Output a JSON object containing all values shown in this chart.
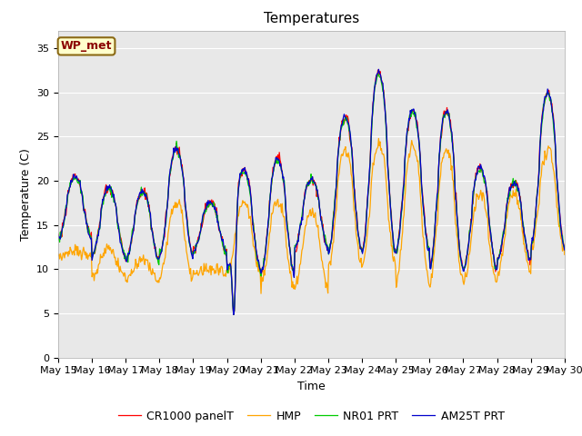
{
  "title": "Temperatures",
  "xlabel": "Time",
  "ylabel": "Temperature (C)",
  "ylim": [
    0,
    37
  ],
  "yticks": [
    0,
    5,
    10,
    15,
    20,
    25,
    30,
    35
  ],
  "plot_bg_color": "#e8e8e8",
  "fig_bg_color": "#ffffff",
  "annotation_text": "WP_met",
  "annotation_facecolor": "#ffffcc",
  "annotation_edgecolor": "#8b6914",
  "annotation_textcolor": "#8b0000",
  "colors": {
    "CR1000 panelT": "#ff0000",
    "HMP": "#ffa500",
    "NR01 PRT": "#00cc00",
    "AM25T PRT": "#0000cc"
  },
  "linewidth": 0.9,
  "x_tick_labels": [
    "May 15",
    "May 16",
    "May 17",
    "May 18",
    "May 19",
    "May 20",
    "May 21",
    "May 22",
    "May 23",
    "May 24",
    "May 25",
    "May 26",
    "May 27",
    "May 28",
    "May 29",
    "May 30"
  ],
  "n_days": 15,
  "pts_per_day": 48,
  "day_peaks_cr": [
    20.5,
    19.2,
    18.8,
    23.6,
    17.5,
    21.2,
    22.5,
    20.2,
    27.2,
    32.3,
    28.0,
    28.0,
    21.5,
    19.8,
    30.0
  ],
  "day_mins_cr": [
    13.5,
    11.5,
    11.0,
    11.5,
    12.0,
    10.0,
    9.5,
    12.5,
    12.0,
    12.0,
    12.0,
    10.0,
    10.0,
    11.0,
    12.5
  ],
  "day_peaks_hmp": [
    12.0,
    12.2,
    11.0,
    17.5,
    10.0,
    17.5,
    17.5,
    16.5,
    23.5,
    24.0,
    24.0,
    23.5,
    18.5,
    18.5,
    23.5
  ],
  "day_mins_hmp": [
    11.5,
    9.2,
    8.8,
    9.0,
    9.5,
    9.5,
    8.0,
    8.0,
    10.5,
    10.5,
    8.5,
    8.5,
    8.5,
    9.5,
    12.0
  ],
  "grid_color": "#ffffff",
  "title_fontsize": 11,
  "axis_label_fontsize": 9,
  "tick_fontsize": 8,
  "legend_fontsize": 9
}
